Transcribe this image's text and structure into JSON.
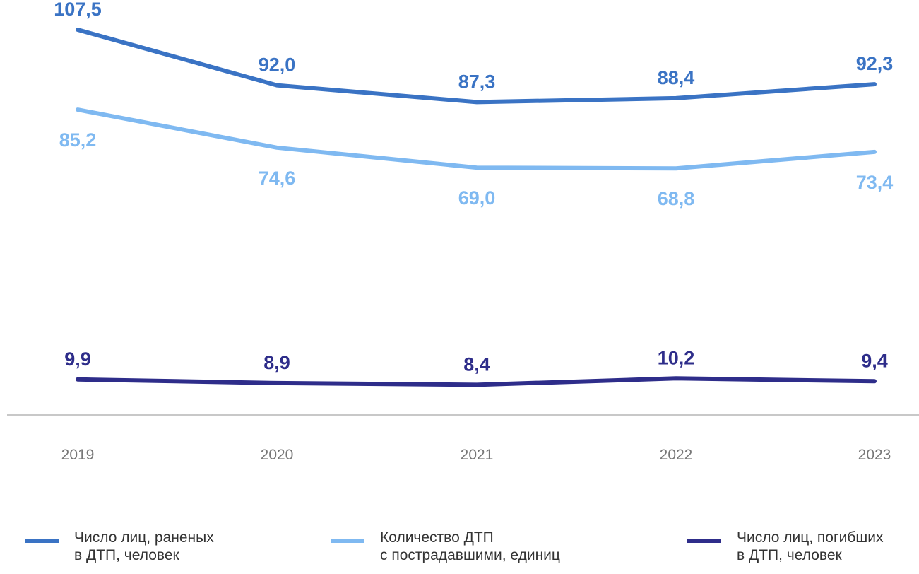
{
  "chart_data": {
    "type": "line",
    "categories": [
      "2019",
      "2020",
      "2021",
      "2022",
      "2023"
    ],
    "series": [
      {
        "name": "Число лиц, раненых\nв ДТП, человек",
        "values": [
          107.5,
          92.0,
          87.3,
          88.4,
          92.3
        ],
        "labels": [
          "107,5",
          "92,0",
          "87,3",
          "88,4",
          "92,3"
        ],
        "color": "#3a73c4",
        "label_position": "above"
      },
      {
        "name": "Количество ДТП\nс пострадавшими, единиц",
        "values": [
          85.2,
          74.6,
          69.0,
          68.8,
          73.4
        ],
        "labels": [
          "85,2",
          "74,6",
          "69,0",
          "68,8",
          "73,4"
        ],
        "color": "#7fb9f1",
        "label_position": "below"
      },
      {
        "name": "Число лиц, погибших\nв ДТП, человек",
        "values": [
          9.9,
          8.9,
          8.4,
          10.2,
          9.4
        ],
        "labels": [
          "9,9",
          "8,9",
          "8,4",
          "10,2",
          "9,4"
        ],
        "color": "#2e2d8a",
        "label_position": "above"
      }
    ],
    "ylim": [
      0,
      115
    ],
    "grid": false,
    "legend_position": "bottom",
    "axis_color": "#c8c8c8",
    "tick_label_color": "#777777"
  }
}
